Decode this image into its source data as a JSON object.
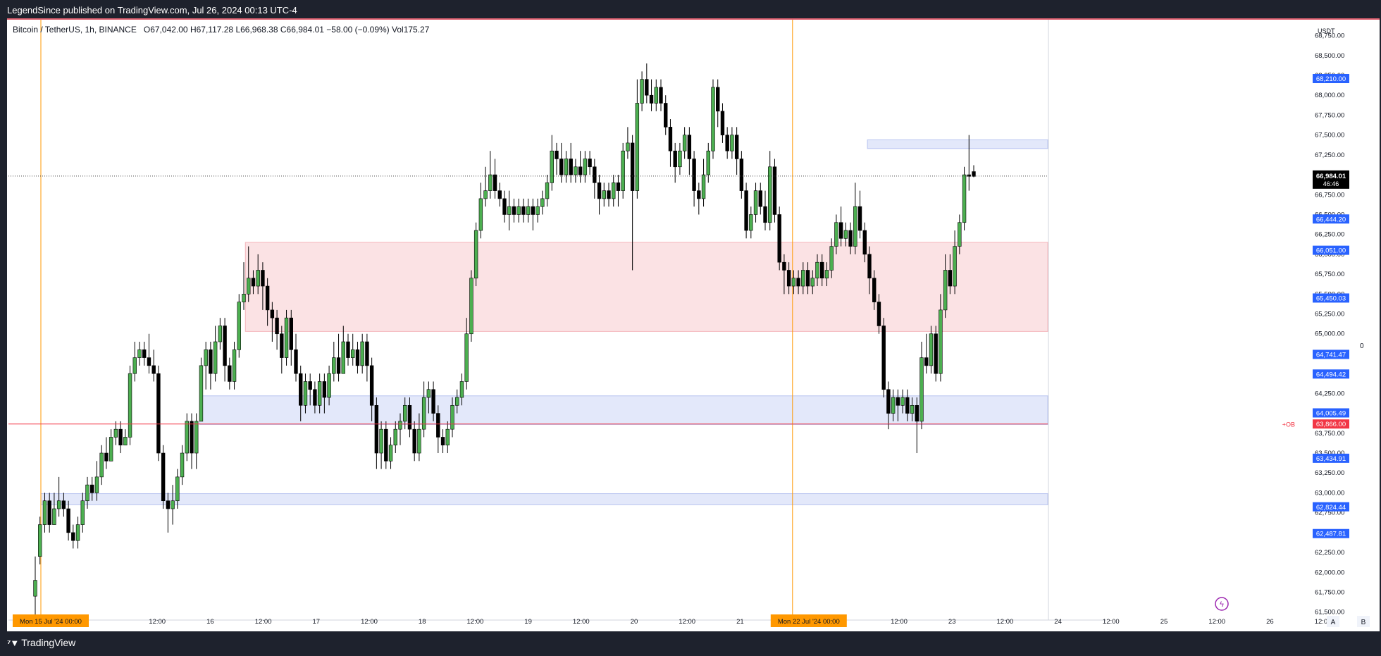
{
  "header": {
    "published": "LegendSince published on TradingView.com, Jul 26, 2024 00:13 UTC-4"
  },
  "legend": {
    "symbol": "Bitcoin / TetherUS, 1h, BINANCE",
    "open": "O67,042.00",
    "high": "H67,117.28",
    "low": "L66,968.38",
    "close": "C66,984.01",
    "change": "−58.00 (−0.09%)",
    "volume": "Vol175.27"
  },
  "footer": {
    "brand": "TradingView",
    "scale_a": "A",
    "scale_b": "B"
  },
  "colors": {
    "up": "#4caf50",
    "down": "#000000",
    "supply_zone": "#fbe2e4",
    "demand_zone": "#e3e8fa",
    "label_blue": "#2962ff",
    "label_red": "#f23645",
    "marker": "#ff9800"
  },
  "chart_data": {
    "type": "candlestick",
    "currency": "USDT",
    "ylim": [
      61400,
      68950
    ],
    "y_ticks": [
      61500,
      61750,
      62000,
      62250,
      62500,
      62750,
      63000,
      63250,
      63500,
      63750,
      64000,
      64250,
      64500,
      64750,
      65000,
      65250,
      65500,
      65750,
      66000,
      66250,
      66500,
      66750,
      67000,
      67250,
      67500,
      67750,
      68000,
      68250,
      68500,
      68750
    ],
    "x_labels": [
      "Mon 15 Jul '24   00:00",
      "12:00",
      "16",
      "12:00",
      "17",
      "12:00",
      "18",
      "12:00",
      "19",
      "12:00",
      "20",
      "12:00",
      "21",
      "12:00",
      "Mon 22 Jul '24   00:00",
      "12:00",
      "23",
      "12:00",
      "24",
      "12:00",
      "25",
      "12:00",
      "26",
      "12:00"
    ],
    "highlighted_x_labels": [
      "Mon 15 Jul '24   00:00",
      "Mon 22 Jul '24   00:00"
    ],
    "price_labels": [
      {
        "text": "68,210.00",
        "value": 68210
      },
      {
        "text": "66,444.20",
        "value": 66444.2
      },
      {
        "text": "66,051.00",
        "value": 66051
      },
      {
        "text": "65,450.03",
        "value": 65450.03
      },
      {
        "text": "64,741.47",
        "value": 64741.47
      },
      {
        "text": "64,494.42",
        "value": 64494.42
      },
      {
        "text": "64,005.49",
        "value": 64005.49
      },
      {
        "text": "63,434.91",
        "value": 63434.91
      },
      {
        "text": "62,824.44",
        "value": 62824.44
      },
      {
        "text": "62,487.81",
        "value": 62487.81
      }
    ],
    "last_price": {
      "text": "66,984.01",
      "countdown": "46:46",
      "value": 66984.01
    },
    "ob_line": {
      "text": "63,866.00",
      "tag": "+OB",
      "value": 63866
    },
    "zones": [
      {
        "kind": "supply",
        "top": 66150,
        "bottom": 65030,
        "from_day": 1.93
      },
      {
        "kind": "demand",
        "top": 64220,
        "bottom": 63860,
        "from_day": 1.5
      },
      {
        "kind": "demand",
        "top": 62990,
        "bottom": 62850,
        "from_day": 0.0
      },
      {
        "kind": "demand",
        "top": 67440,
        "bottom": 67330,
        "from_day": 7.8
      }
    ],
    "candles": [
      [
        61.7,
        61.9,
        61.4,
        62.2
      ],
      [
        62.2,
        62.6,
        62.1,
        62.7
      ],
      [
        62.6,
        62.9,
        62.5,
        63.0
      ],
      [
        62.9,
        62.6,
        62.5,
        63.0
      ],
      [
        62.6,
        62.8,
        62.6,
        63.0
      ],
      [
        62.8,
        62.9,
        62.7,
        63.2
      ],
      [
        62.9,
        62.8,
        62.7,
        63.0
      ],
      [
        62.8,
        62.5,
        62.4,
        62.9
      ],
      [
        62.5,
        62.4,
        62.3,
        62.6
      ],
      [
        62.4,
        62.6,
        62.3,
        62.7
      ],
      [
        62.6,
        62.9,
        62.5,
        63.0
      ],
      [
        62.9,
        63.1,
        62.8,
        63.2
      ],
      [
        63.1,
        63.0,
        62.9,
        63.2
      ],
      [
        63.0,
        63.2,
        62.9,
        63.4
      ],
      [
        63.2,
        63.5,
        63.1,
        63.6
      ],
      [
        63.5,
        63.4,
        63.3,
        63.7
      ],
      [
        63.4,
        63.7,
        63.4,
        63.8
      ],
      [
        63.7,
        63.8,
        63.6,
        63.9
      ],
      [
        63.8,
        63.6,
        63.5,
        63.9
      ],
      [
        63.6,
        63.7,
        63.6,
        63.8
      ],
      [
        63.7,
        64.5,
        63.6,
        64.6
      ],
      [
        64.5,
        64.7,
        64.4,
        64.9
      ],
      [
        64.7,
        64.8,
        64.6,
        64.9
      ],
      [
        64.8,
        64.7,
        64.6,
        64.9
      ],
      [
        64.7,
        64.6,
        64.5,
        65.0
      ],
      [
        64.6,
        64.5,
        64.4,
        64.8
      ],
      [
        64.5,
        63.5,
        63.4,
        64.6
      ],
      [
        63.5,
        62.9,
        62.8,
        63.6
      ],
      [
        62.9,
        62.8,
        62.5,
        63.0
      ],
      [
        62.8,
        62.9,
        62.6,
        63.1
      ],
      [
        62.9,
        63.2,
        62.8,
        63.3
      ],
      [
        63.2,
        63.5,
        63.1,
        63.6
      ],
      [
        63.5,
        63.9,
        63.4,
        64.0
      ],
      [
        63.9,
        63.5,
        63.3,
        64.0
      ],
      [
        63.5,
        63.9,
        63.3,
        64.0
      ],
      [
        63.9,
        64.6,
        63.9,
        64.7
      ],
      [
        64.6,
        64.8,
        64.3,
        64.9
      ],
      [
        64.8,
        64.5,
        64.3,
        64.9
      ],
      [
        64.5,
        64.9,
        64.4,
        65.1
      ],
      [
        64.9,
        65.1,
        64.8,
        65.2
      ],
      [
        65.1,
        64.6,
        64.4,
        65.2
      ],
      [
        64.6,
        64.4,
        64.3,
        64.7
      ],
      [
        64.4,
        64.8,
        64.3,
        64.9
      ],
      [
        64.8,
        65.4,
        64.7,
        65.5
      ],
      [
        65.4,
        65.5,
        65.3,
        65.9
      ],
      [
        65.5,
        65.7,
        65.4,
        66.1
      ],
      [
        65.7,
        65.6,
        65.5,
        65.8
      ],
      [
        65.6,
        65.8,
        65.5,
        66.0
      ],
      [
        65.8,
        65.6,
        65.3,
        65.9
      ],
      [
        65.6,
        65.3,
        65.1,
        65.7
      ],
      [
        65.3,
        65.2,
        64.9,
        65.4
      ],
      [
        65.2,
        65.0,
        64.8,
        65.3
      ],
      [
        65.0,
        64.7,
        64.5,
        65.1
      ],
      [
        64.7,
        65.2,
        64.6,
        65.3
      ],
      [
        65.2,
        64.8,
        64.6,
        65.3
      ],
      [
        64.8,
        64.5,
        64.4,
        65.0
      ],
      [
        64.5,
        64.1,
        63.9,
        64.6
      ],
      [
        64.1,
        64.4,
        64.0,
        64.5
      ],
      [
        64.4,
        64.3,
        64.1,
        64.5
      ],
      [
        64.3,
        64.1,
        64.0,
        64.4
      ],
      [
        64.1,
        64.4,
        64.0,
        64.5
      ],
      [
        64.4,
        64.2,
        64.0,
        64.5
      ],
      [
        64.2,
        64.5,
        64.1,
        64.6
      ],
      [
        64.5,
        64.7,
        64.4,
        64.9
      ],
      [
        64.7,
        64.5,
        64.4,
        65.0
      ],
      [
        64.5,
        64.9,
        64.5,
        65.1
      ],
      [
        64.9,
        64.7,
        64.6,
        65.0
      ],
      [
        64.7,
        64.8,
        64.6,
        65.0
      ],
      [
        64.8,
        64.6,
        64.5,
        64.9
      ],
      [
        64.6,
        64.9,
        64.5,
        65.0
      ],
      [
        64.9,
        64.6,
        64.4,
        65.0
      ],
      [
        64.6,
        64.1,
        63.9,
        64.7
      ],
      [
        64.1,
        63.5,
        63.3,
        64.2
      ],
      [
        63.5,
        63.8,
        63.3,
        63.9
      ],
      [
        63.8,
        63.4,
        63.3,
        63.9
      ],
      [
        63.4,
        63.6,
        63.3,
        63.7
      ],
      [
        63.6,
        63.8,
        63.5,
        63.9
      ],
      [
        63.8,
        63.9,
        63.6,
        64.0
      ],
      [
        63.9,
        64.1,
        63.8,
        64.2
      ],
      [
        64.1,
        63.8,
        63.7,
        64.2
      ],
      [
        63.8,
        63.5,
        63.4,
        63.9
      ],
      [
        63.5,
        63.8,
        63.4,
        64.0
      ],
      [
        63.8,
        64.2,
        63.7,
        64.4
      ],
      [
        64.2,
        64.3,
        64.0,
        64.4
      ],
      [
        64.3,
        64.0,
        63.9,
        64.4
      ],
      [
        64.0,
        63.7,
        63.5,
        64.1
      ],
      [
        63.7,
        63.6,
        63.5,
        63.8
      ],
      [
        63.6,
        63.8,
        63.5,
        63.9
      ],
      [
        63.8,
        64.1,
        63.7,
        64.2
      ],
      [
        64.1,
        64.2,
        64.0,
        64.3
      ],
      [
        64.2,
        64.4,
        64.1,
        64.5
      ],
      [
        64.4,
        65.0,
        64.3,
        65.2
      ],
      [
        65.0,
        65.7,
        64.9,
        65.8
      ],
      [
        65.7,
        66.3,
        65.6,
        66.4
      ],
      [
        66.3,
        66.7,
        66.2,
        66.9
      ],
      [
        66.7,
        66.8,
        66.6,
        67.1
      ],
      [
        66.8,
        67.0,
        66.7,
        67.3
      ],
      [
        67.0,
        66.8,
        66.7,
        67.2
      ],
      [
        66.8,
        66.7,
        66.6,
        66.9
      ],
      [
        66.7,
        66.5,
        66.4,
        66.8
      ],
      [
        66.5,
        66.6,
        66.3,
        66.8
      ],
      [
        66.6,
        66.5,
        66.4,
        66.7
      ],
      [
        66.5,
        66.6,
        66.4,
        66.7
      ],
      [
        66.6,
        66.5,
        66.4,
        66.7
      ],
      [
        66.5,
        66.6,
        66.4,
        66.7
      ],
      [
        66.6,
        66.5,
        66.3,
        66.7
      ],
      [
        66.5,
        66.6,
        66.4,
        66.7
      ],
      [
        66.6,
        66.7,
        66.5,
        66.8
      ],
      [
        66.7,
        66.9,
        66.6,
        67.0
      ],
      [
        66.9,
        67.3,
        66.8,
        67.5
      ],
      [
        67.3,
        67.2,
        67.0,
        67.4
      ],
      [
        67.2,
        67.0,
        66.9,
        67.4
      ],
      [
        67.0,
        67.2,
        66.9,
        67.3
      ],
      [
        67.2,
        67.0,
        66.9,
        67.4
      ],
      [
        67.0,
        67.1,
        66.9,
        67.2
      ],
      [
        67.1,
        67.0,
        66.9,
        67.3
      ],
      [
        67.0,
        67.2,
        66.9,
        67.3
      ],
      [
        67.2,
        67.1,
        67.0,
        67.3
      ],
      [
        67.1,
        66.9,
        66.7,
        67.2
      ],
      [
        66.9,
        66.7,
        66.5,
        67.0
      ],
      [
        66.7,
        66.8,
        66.6,
        66.9
      ],
      [
        66.8,
        66.7,
        66.6,
        66.9
      ],
      [
        66.7,
        66.9,
        66.6,
        67.0
      ],
      [
        66.9,
        66.8,
        66.6,
        67.0
      ],
      [
        66.8,
        67.3,
        66.7,
        67.4
      ],
      [
        67.3,
        67.4,
        67.2,
        67.6
      ],
      [
        67.4,
        66.8,
        65.8,
        67.5
      ],
      [
        66.8,
        67.9,
        66.7,
        68.2
      ],
      [
        67.9,
        68.2,
        67.8,
        68.3
      ],
      [
        68.2,
        68.0,
        67.9,
        68.4
      ],
      [
        68.0,
        67.9,
        67.8,
        68.2
      ],
      [
        67.9,
        68.1,
        67.8,
        68.2
      ],
      [
        68.1,
        67.9,
        67.8,
        68.2
      ],
      [
        67.9,
        67.6,
        67.5,
        68.0
      ],
      [
        67.6,
        67.3,
        67.1,
        67.7
      ],
      [
        67.3,
        67.1,
        66.9,
        67.4
      ],
      [
        67.1,
        67.3,
        67.0,
        67.4
      ],
      [
        67.3,
        67.5,
        67.2,
        67.6
      ],
      [
        67.5,
        67.2,
        67.0,
        67.6
      ],
      [
        67.2,
        66.8,
        66.6,
        67.3
      ],
      [
        66.8,
        66.7,
        66.5,
        66.9
      ],
      [
        66.7,
        67.0,
        66.6,
        67.2
      ],
      [
        67.0,
        67.3,
        66.9,
        67.4
      ],
      [
        67.3,
        68.1,
        67.2,
        68.2
      ],
      [
        68.1,
        67.8,
        67.6,
        68.2
      ],
      [
        67.8,
        67.5,
        67.4,
        67.9
      ],
      [
        67.5,
        67.3,
        67.2,
        67.6
      ],
      [
        67.3,
        67.5,
        67.2,
        67.6
      ],
      [
        67.5,
        67.2,
        67.0,
        67.6
      ],
      [
        67.2,
        66.8,
        66.7,
        67.3
      ],
      [
        66.8,
        66.3,
        66.2,
        66.9
      ],
      [
        66.3,
        66.5,
        66.2,
        66.6
      ],
      [
        66.5,
        66.8,
        66.4,
        66.9
      ],
      [
        66.8,
        66.6,
        66.5,
        66.9
      ],
      [
        66.6,
        66.4,
        66.3,
        66.8
      ],
      [
        66.4,
        67.1,
        66.3,
        67.3
      ],
      [
        67.1,
        66.5,
        66.4,
        67.2
      ],
      [
        66.5,
        65.9,
        65.8,
        66.6
      ],
      [
        65.9,
        65.8,
        65.5,
        66.0
      ],
      [
        65.8,
        65.6,
        65.5,
        65.9
      ],
      [
        65.6,
        65.7,
        65.5,
        65.8
      ],
      [
        65.7,
        65.6,
        65.5,
        65.8
      ],
      [
        65.6,
        65.8,
        65.5,
        65.9
      ],
      [
        65.8,
        65.6,
        65.5,
        65.9
      ],
      [
        65.6,
        65.7,
        65.5,
        65.8
      ],
      [
        65.7,
        65.9,
        65.6,
        66.0
      ],
      [
        65.9,
        65.7,
        65.6,
        66.0
      ],
      [
        65.7,
        65.8,
        65.6,
        65.9
      ],
      [
        65.8,
        66.1,
        65.7,
        66.2
      ],
      [
        66.1,
        66.4,
        66.0,
        66.5
      ],
      [
        66.4,
        66.2,
        66.1,
        66.6
      ],
      [
        66.2,
        66.3,
        66.1,
        66.4
      ],
      [
        66.3,
        66.1,
        66.0,
        66.4
      ],
      [
        66.1,
        66.6,
        66.0,
        66.9
      ],
      [
        66.6,
        66.3,
        66.2,
        66.8
      ],
      [
        66.3,
        66.0,
        65.9,
        66.4
      ],
      [
        66.0,
        65.7,
        65.5,
        66.1
      ],
      [
        65.7,
        65.4,
        65.3,
        65.8
      ],
      [
        65.4,
        65.1,
        65.0,
        65.5
      ],
      [
        65.1,
        64.3,
        64.2,
        65.2
      ],
      [
        64.3,
        64.0,
        63.8,
        64.4
      ],
      [
        64.0,
        64.2,
        63.9,
        64.3
      ],
      [
        64.2,
        64.1,
        63.9,
        64.3
      ],
      [
        64.1,
        64.2,
        64.0,
        64.3
      ],
      [
        64.2,
        64.0,
        63.9,
        64.3
      ],
      [
        64.0,
        64.1,
        63.9,
        64.2
      ],
      [
        64.1,
        63.9,
        63.5,
        64.2
      ],
      [
        63.9,
        64.7,
        63.8,
        64.9
      ],
      [
        64.7,
        64.6,
        64.5,
        65.0
      ],
      [
        64.6,
        65.0,
        64.5,
        65.1
      ],
      [
        65.0,
        64.5,
        64.4,
        65.1
      ],
      [
        64.5,
        65.3,
        64.4,
        65.5
      ],
      [
        65.3,
        65.8,
        65.2,
        66.0
      ],
      [
        65.8,
        65.6,
        65.5,
        66.0
      ],
      [
        65.6,
        66.1,
        65.5,
        66.3
      ],
      [
        66.1,
        66.4,
        66.0,
        66.5
      ],
      [
        66.4,
        67.0,
        66.3,
        67.1
      ],
      [
        67.0,
        66.98,
        66.8,
        67.5
      ],
      [
        67.04,
        66.98,
        66.97,
        67.12
      ]
    ]
  }
}
